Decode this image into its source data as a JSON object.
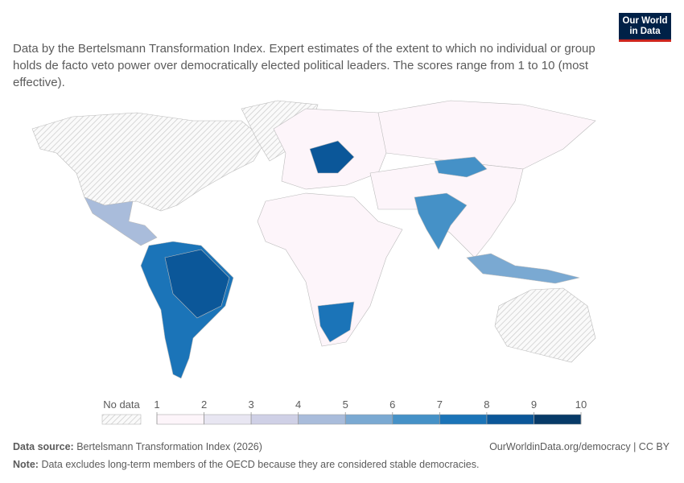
{
  "header": {
    "subtitle": "Data by the Bertelsmann Transformation Index. Expert estimates of the extent to which no individual or group holds de facto veto power over democratically elected political leaders. The scores range from 1 to 10 (most effective).",
    "logo_line1": "Our World",
    "logo_line2": "in Data"
  },
  "legend": {
    "no_data_label": "No data",
    "ticks": [
      1,
      2,
      3,
      4,
      5,
      6,
      7,
      8,
      9,
      10
    ],
    "colors": [
      "#fdf5fa",
      "#e8e6f2",
      "#cfd0e6",
      "#a9bcdb",
      "#7aa9d2",
      "#4591c7",
      "#1b74b8",
      "#0b5799",
      "#073a68"
    ]
  },
  "footer": {
    "source_label": "Data source:",
    "source": "Bertelsmann Transformation Index (2026)",
    "url": "OurWorldinData.org/democracy | CC BY",
    "note_label": "Note:",
    "note": "Data excludes long-term members of the OECD because they are considered stable democracies."
  }
}
